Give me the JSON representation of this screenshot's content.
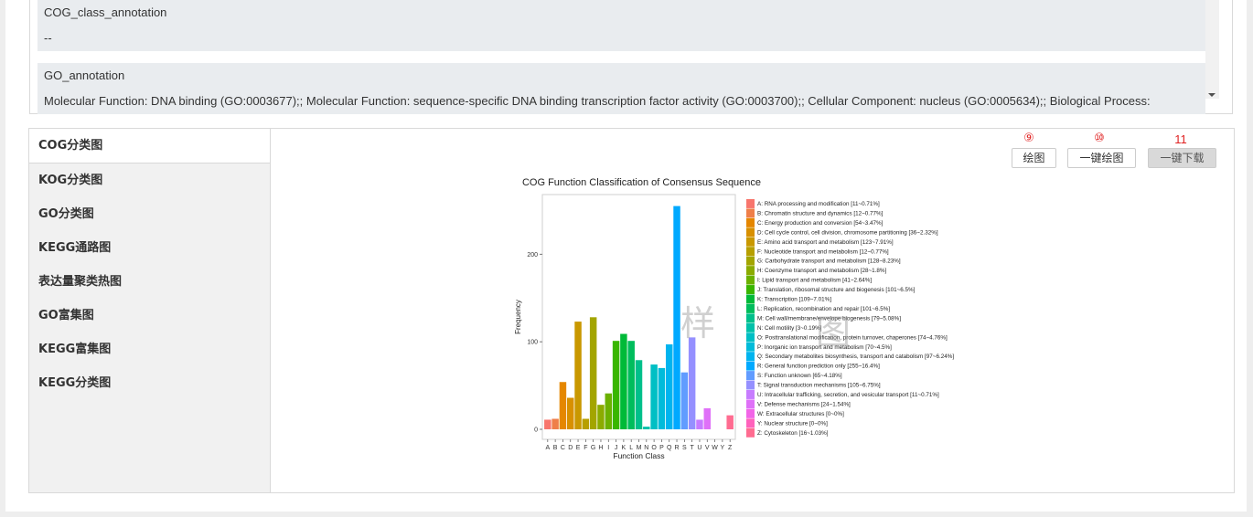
{
  "annotations": [
    {
      "key": "COG_class_annotation",
      "value": "--"
    },
    {
      "key": "GO_annotation",
      "value": "Molecular Function: DNA binding (GO:0003677);; Molecular Function: sequence-specific DNA binding transcription factor activity (GO:0003700);; Cellular Component: nucleus (GO:0005634);; Biological Process:"
    }
  ],
  "sidebar": {
    "items": [
      {
        "label": "COG分类图",
        "active": true
      },
      {
        "label": "KOG分类图"
      },
      {
        "label": "GO分类图"
      },
      {
        "label": "KEGG通路图"
      },
      {
        "label": "表达量聚类热图"
      },
      {
        "label": "GO富集图"
      },
      {
        "label": "KEGG富集图"
      },
      {
        "label": "KEGG分类图"
      }
    ]
  },
  "toolbar": {
    "draw_label": "绘图",
    "draw_marker": "⑨",
    "oneclick_draw_label": "一键绘图",
    "oneclick_draw_marker": "⑩",
    "oneclick_download_label": "一键下载",
    "oneclick_download_marker": "11"
  },
  "watermark": {
    "char1": "样",
    "char2": "图"
  },
  "chart_data": {
    "type": "bar",
    "title": "COG Function Classification of Consensus Sequence",
    "xlabel": "Function Class",
    "ylabel": "Frequency",
    "ylim": [
      0,
      265
    ],
    "yticks": [
      0,
      100,
      200
    ],
    "grid": false,
    "legend_position": "right",
    "categories": [
      "A",
      "B",
      "C",
      "D",
      "E",
      "F",
      "G",
      "H",
      "I",
      "J",
      "K",
      "L",
      "M",
      "N",
      "O",
      "P",
      "Q",
      "R",
      "S",
      "T",
      "U",
      "V",
      "W",
      "Y",
      "Z"
    ],
    "values": [
      11,
      12,
      54,
      36,
      123,
      12,
      128,
      28,
      41,
      101,
      109,
      101,
      79,
      3,
      74,
      70,
      97,
      255,
      65,
      105,
      11,
      24,
      0,
      0,
      16
    ],
    "colors": [
      "#F8766D",
      "#EF7F49",
      "#E58700",
      "#D89000",
      "#C99800",
      "#B79F00",
      "#A3A500",
      "#8BAB00",
      "#6BB100",
      "#39B600",
      "#00BA38",
      "#00BD5C",
      "#00C08B",
      "#00C1A9",
      "#00BFC4",
      "#00BBDA",
      "#00B4EF",
      "#00A9FF",
      "#619CFF",
      "#9590FF",
      "#C77CFF",
      "#DF70F8",
      "#F265E7",
      "#FF62BC",
      "#FF6C91"
    ],
    "legend": [
      "A: RNA processing and modification [11~0.71%]",
      "B: Chromatin structure and dynamics [12~0.77%]",
      "C: Energy production and conversion [54~3.47%]",
      "D: Cell cycle control, cell division, chromosome partitioning [36~2.32%]",
      "E: Amino acid transport and metabolism [123~7.91%]",
      "F: Nucleotide transport and metabolism [12~0.77%]",
      "G: Carbohydrate transport and metabolism [128~8.23%]",
      "H: Coenzyme transport and metabolism [28~1.8%]",
      "I: Lipid transport and metabolism [41~2.64%]",
      "J: Translation, ribosomal structure and biogenesis [101~6.5%]",
      "K: Transcription [109~7.01%]",
      "L: Replication, recombination and repair [101~6.5%]",
      "M: Cell wall/membrane/envelope biogenesis [79~5.08%]",
      "N: Cell motility [3~0.19%]",
      "O: Posttranslational modification, protein turnover, chaperones [74~4.76%]",
      "P: Inorganic ion transport and metabolism [70~4.5%]",
      "Q: Secondary metabolites biosynthesis, transport and catabolism [97~6.24%]",
      "R: General function prediction only [255~16.4%]",
      "S: Function unknown [65~4.18%]",
      "T: Signal transduction mechanisms [105~6.75%]",
      "U: Intracellular trafficking, secretion, and vesicular transport [11~0.71%]",
      "V: Defense mechanisms [24~1.54%]",
      "W: Extracellular structures [0~0%]",
      "Y: Nuclear structure [0~0%]",
      "Z: Cytoskeleton [16~1.03%]"
    ]
  }
}
